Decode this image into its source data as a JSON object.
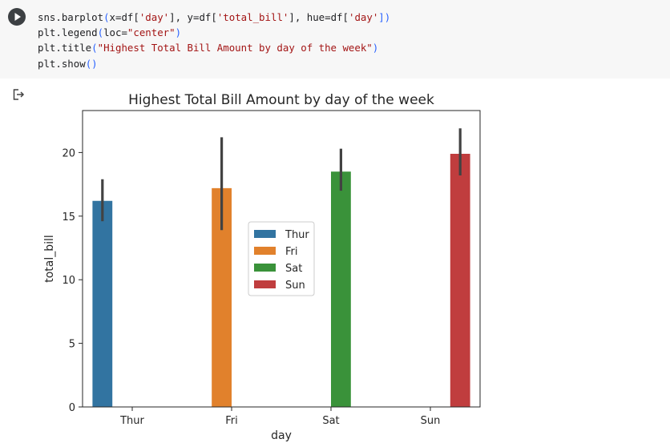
{
  "cell": {
    "run_icon": "play-icon",
    "code_lines": [
      [
        {
          "t": "sns.barplot"
        },
        {
          "t": "(",
          "c": "paren"
        },
        {
          "t": "x=df["
        },
        {
          "t": "'day'",
          "c": "str"
        },
        {
          "t": "], y=df["
        },
        {
          "t": "'total_bill'",
          "c": "str"
        },
        {
          "t": "], hue=df["
        },
        {
          "t": "'day'",
          "c": "str"
        },
        {
          "t": "])",
          "c": "paren"
        }
      ],
      [
        {
          "t": "plt.legend"
        },
        {
          "t": "(",
          "c": "paren"
        },
        {
          "t": "loc="
        },
        {
          "t": "\"center\"",
          "c": "str"
        },
        {
          "t": ")",
          "c": "paren"
        }
      ],
      [
        {
          "t": "plt.title"
        },
        {
          "t": "(",
          "c": "paren"
        },
        {
          "t": "\"Highest Total Bill Amount by day of the week\"",
          "c": "str"
        },
        {
          "t": ")",
          "c": "paren"
        }
      ],
      [
        {
          "t": "plt.show"
        },
        {
          "t": "()",
          "c": "paren"
        }
      ]
    ]
  },
  "output": {
    "icon": "output-redirect-icon"
  },
  "chart_data": {
    "type": "bar",
    "title": "Highest Total Bill Amount by day of the week",
    "xlabel": "day",
    "ylabel": "total_bill",
    "categories": [
      "Thur",
      "Fri",
      "Sat",
      "Sun"
    ],
    "ylim": [
      0,
      23.3
    ],
    "yticks": [
      0,
      5,
      10,
      15,
      20
    ],
    "series": [
      {
        "name": "Thur",
        "color": "#3274a1",
        "category": "Thur",
        "value": 16.2,
        "ci": [
          14.6,
          17.9
        ]
      },
      {
        "name": "Fri",
        "color": "#e1812c",
        "category": "Fri",
        "value": 17.2,
        "ci": [
          13.9,
          21.2
        ]
      },
      {
        "name": "Sat",
        "color": "#3a923a",
        "category": "Sat",
        "value": 18.5,
        "ci": [
          17.0,
          20.3
        ]
      },
      {
        "name": "Sun",
        "color": "#c03d3e",
        "category": "Sun",
        "value": 19.9,
        "ci": [
          18.2,
          21.9
        ]
      }
    ],
    "legend": {
      "loc": "center",
      "entries": [
        "Thur",
        "Fri",
        "Sat",
        "Sun"
      ]
    },
    "grid": false
  }
}
